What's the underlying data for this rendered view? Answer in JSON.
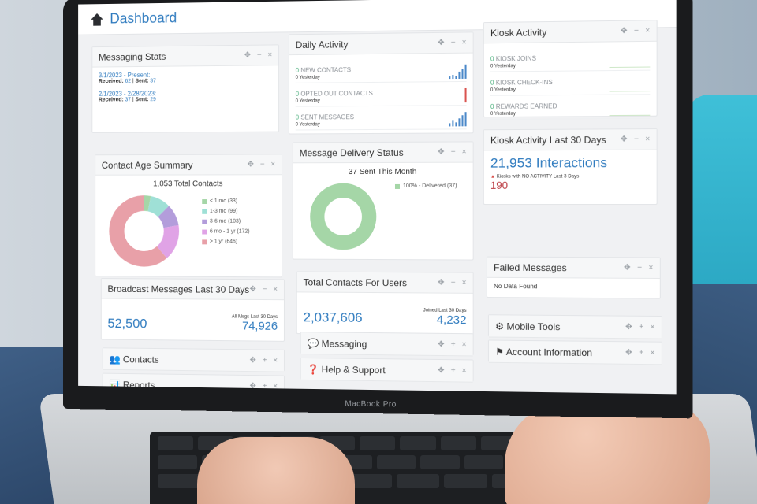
{
  "header": {
    "title": "Dashboard"
  },
  "device": {
    "label": "MacBook Pro"
  },
  "tools": {
    "move": "✥",
    "minimize": "−",
    "close": "×",
    "expand": "+"
  },
  "panels": {
    "messaging_stats": {
      "title": "Messaging Stats",
      "rows": [
        {
          "date": "3/1/2023 - Present:",
          "received_label": "Received:",
          "received": "62",
          "sent_label": "Sent:",
          "sent": "37"
        },
        {
          "date": "2/1/2023 - 2/28/2023:",
          "received_label": "Received:",
          "received": "37",
          "sent_label": "Sent:",
          "sent": "29"
        }
      ]
    },
    "daily_activity": {
      "title": "Daily Activity",
      "rows": [
        {
          "count": "0",
          "label": "NEW CONTACTS",
          "sub": "0 Yesterday"
        },
        {
          "count": "0",
          "label": "OPTED OUT CONTACTS",
          "sub": "0 Yesterday"
        },
        {
          "count": "0",
          "label": "SENT MESSAGES",
          "sub": "0 Yesterday"
        }
      ]
    },
    "kiosk_activity": {
      "title": "Kiosk Activity",
      "rows": [
        {
          "count": "0",
          "label": "KIOSK JOINS",
          "sub": "0 Yesterday"
        },
        {
          "count": "0",
          "label": "KIOSK CHECK-INS",
          "sub": "0 Yesterday"
        },
        {
          "count": "0",
          "label": "REWARDS EARNED",
          "sub": "0 Yesterday"
        }
      ]
    },
    "contact_age": {
      "title": "Contact Age Summary",
      "total": "1,053 Total Contacts",
      "legend": [
        {
          "label": "< 1 mo (33)",
          "color": "#a5d6a7",
          "value": 33
        },
        {
          "label": "1-3 mo (99)",
          "color": "#9fe0d6",
          "value": 99
        },
        {
          "label": "3-6 mo (103)",
          "color": "#b39ddb",
          "value": 103
        },
        {
          "label": "6 mo - 1 yr (172)",
          "color": "#e0a3e6",
          "value": 172
        },
        {
          "label": "> 1 yr (646)",
          "color": "#e8a0a8",
          "value": 646
        }
      ]
    },
    "delivery_status": {
      "title": "Message Delivery Status",
      "headline": "37 Sent This Month",
      "legend": [
        {
          "label": "100% - Delivered (37)",
          "color": "#a5d6a7"
        }
      ]
    },
    "kiosk_30": {
      "title": "Kiosk Activity Last 30 Days",
      "interactions": "21,953 Interactions",
      "warning": "Kiosks with NO ACTIVITY Last 3 Days",
      "no_activity_count": "190"
    },
    "failed": {
      "title": "Failed Messages",
      "message": "No Data Found"
    },
    "broadcast": {
      "title": "Broadcast Messages Last 30 Days",
      "value": "52,500",
      "right_label": "All Msgs Last 30 Days",
      "right_value": "74,926"
    },
    "total_contacts": {
      "title": "Total Contacts For Users",
      "value": "2,037,606",
      "right_label": "Joined Last 30 Days",
      "right_value": "4,232"
    },
    "contacts": {
      "title": "Contacts"
    },
    "reports": {
      "title": "Reports"
    },
    "messaging": {
      "title": "Messaging"
    },
    "help": {
      "title": "Help & Support"
    },
    "mobile_tools": {
      "title": "Mobile Tools"
    },
    "account": {
      "title": "Account Information"
    }
  }
}
